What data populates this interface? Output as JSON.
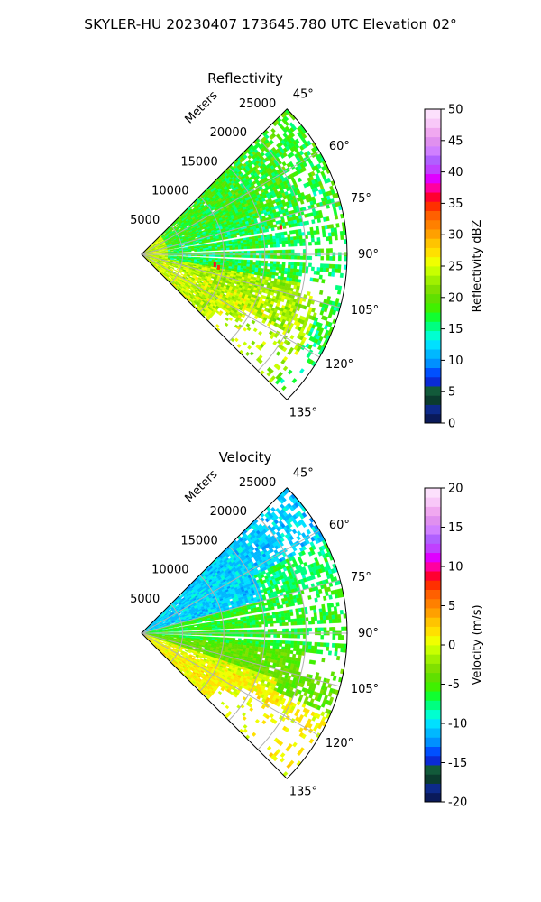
{
  "suptitle": "SKYLER-HU  20230407  173645.780 UTC Elevation 02°",
  "chart_data": [
    {
      "type": "heatmap",
      "title": "Reflectivity",
      "range_label": "Meters",
      "range_ticks": [
        "5000",
        "10000",
        "15000",
        "20000",
        "25000"
      ],
      "azimuth_ticks": [
        "45°",
        "60°",
        "75°",
        "90°",
        "105°",
        "120°",
        "135°"
      ],
      "azimuth_range_deg": [
        45,
        135
      ],
      "range_max_m": 25000,
      "colorbar": {
        "label": "Reflectivity dBZ",
        "min": 0,
        "max": 50,
        "ticks": [
          "0",
          "5",
          "10",
          "15",
          "20",
          "25",
          "30",
          "35",
          "40",
          "45",
          "50"
        ],
        "colors": [
          "#0a1a5a",
          "#0d2a8a",
          "#0b3c2e",
          "#125a3a",
          "#0a2bd6",
          "#0050ff",
          "#0090ff",
          "#00b8ff",
          "#00e0ff",
          "#00ffd0",
          "#00ff80",
          "#10ff30",
          "#40f000",
          "#60e000",
          "#80e000",
          "#a0f000",
          "#c8ff00",
          "#f0ff00",
          "#ffe000",
          "#ffc400",
          "#ffa000",
          "#ff8000",
          "#ff6000",
          "#ff3000",
          "#ff0030",
          "#ff00a0",
          "#e000ff",
          "#c040ff",
          "#b060ff",
          "#d080ff",
          "#e090ef",
          "#f0a8f0",
          "#f8c8f8",
          "#fce0fc"
        ]
      },
      "notes": "Field mostly 12–25 dBZ, green band; yellow-green (~22–27) south-east sector; a few red speckles (~35) near 80° and 100°."
    },
    {
      "type": "heatmap",
      "title": "Velocity",
      "range_label": "Meters",
      "range_ticks": [
        "5000",
        "10000",
        "15000",
        "20000",
        "25000"
      ],
      "azimuth_ticks": [
        "45°",
        "60°",
        "75°",
        "90°",
        "105°",
        "120°",
        "135°"
      ],
      "azimuth_range_deg": [
        45,
        135
      ],
      "range_max_m": 25000,
      "colorbar": {
        "label": "Velocity (m/s)",
        "min": -20,
        "max": 20,
        "ticks": [
          "-20",
          "-15",
          "-10",
          "-5",
          "0",
          "5",
          "10",
          "15",
          "20"
        ],
        "colors": [
          "#0a1a5a",
          "#0d2a8a",
          "#0b3c2e",
          "#125a3a",
          "#0a2bd6",
          "#0050ff",
          "#0090ff",
          "#00b8ff",
          "#00e0ff",
          "#00ffd0",
          "#00ff80",
          "#10ff30",
          "#40f000",
          "#60e000",
          "#80e000",
          "#a0f000",
          "#c8ff00",
          "#f0ff00",
          "#ffe000",
          "#ffc400",
          "#ffa000",
          "#ff8000",
          "#ff6000",
          "#ff3000",
          "#ff0030",
          "#ff00a0",
          "#e000ff",
          "#c040ff",
          "#b060ff",
          "#d080ff",
          "#e090ef",
          "#f0a8f0",
          "#f8c8f8",
          "#fce0fc"
        ]
      },
      "notes": "Inbound (~-10 m/s, cyan) north-east sector 45–75°; ~-5 m/s (green) around 80–110°; ~0 to +2 m/s (yellow) south-east sector 110–135°."
    }
  ]
}
